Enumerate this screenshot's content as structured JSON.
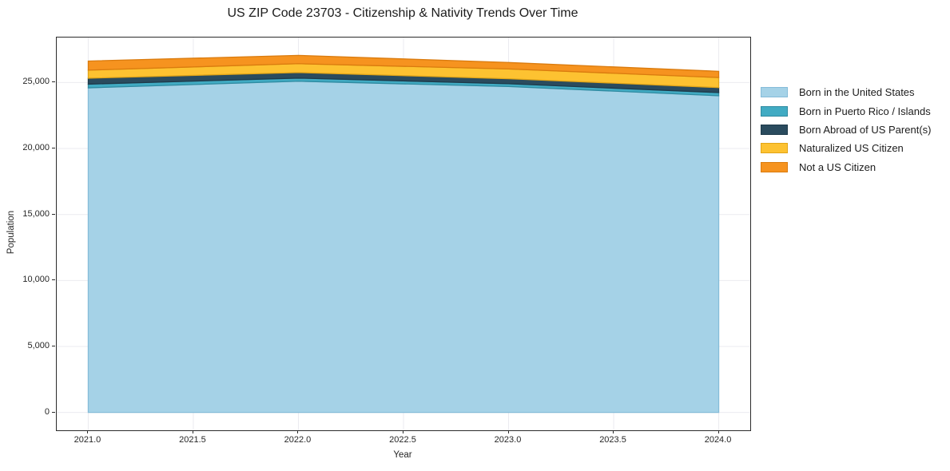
{
  "chart_data": {
    "type": "area",
    "stacked": true,
    "title": "US ZIP Code 23703 - Citizenship & Nativity Trends Over Time",
    "xlabel": "Year",
    "ylabel": "Population",
    "x": [
      2021,
      2022,
      2023,
      2024
    ],
    "series": [
      {
        "name": "Born in the United States",
        "color": "#a5d2e7",
        "edge": "#85bcd9",
        "values": [
          24600,
          25100,
          24700,
          24000
        ]
      },
      {
        "name": "Born in Puerto Rico / Islands",
        "color": "#41abc3",
        "edge": "#2f8ba1",
        "values": [
          280,
          240,
          210,
          240
        ]
      },
      {
        "name": "Born Abroad of US Parent(s)",
        "color": "#2a4b5e",
        "edge": "#1e3a4a",
        "values": [
          450,
          420,
          380,
          380
        ]
      },
      {
        "name": "Naturalized US Citizen",
        "color": "#fdc231",
        "edge": "#e2a517",
        "values": [
          610,
          670,
          740,
          760
        ]
      },
      {
        "name": "Not a US Citizen",
        "color": "#f6931f",
        "edge": "#da7b0e",
        "values": [
          690,
          630,
          490,
          470
        ]
      }
    ],
    "totals": [
      26630,
      27060,
      26520,
      25850
    ],
    "xticks": [
      2021.0,
      2021.5,
      2022.0,
      2022.5,
      2023.0,
      2023.5,
      2024.0
    ],
    "xtick_labels": [
      "2021.0",
      "2021.5",
      "2022.0",
      "2022.5",
      "2023.0",
      "2023.5",
      "2024.0"
    ],
    "yticks": [
      0,
      5000,
      10000,
      15000,
      20000,
      25000
    ],
    "ytick_labels": [
      "0",
      "5,000",
      "10,000",
      "15,000",
      "20,000",
      "25,000"
    ],
    "xlim": [
      2020.85,
      2024.15
    ],
    "ylim": [
      -1353,
      28413
    ],
    "grid": true,
    "grid_color": "#ebebf0",
    "spine_color": "#2b2b2b",
    "legend_position": "right",
    "background": "#ffffff"
  }
}
